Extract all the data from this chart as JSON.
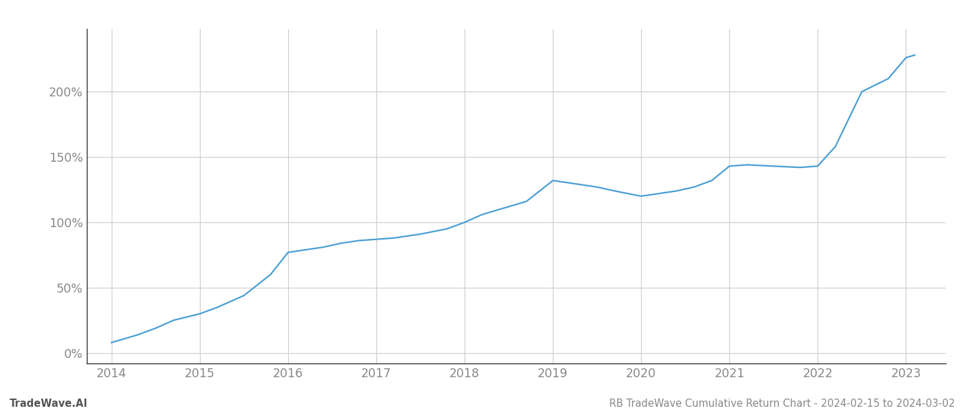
{
  "x": [
    2014.0,
    2014.15,
    2014.3,
    2014.5,
    2014.7,
    2015.0,
    2015.2,
    2015.5,
    2015.8,
    2016.0,
    2016.1,
    2016.2,
    2016.4,
    2016.6,
    2016.8,
    2017.0,
    2017.2,
    2017.5,
    2017.8,
    2018.0,
    2018.2,
    2018.5,
    2018.7,
    2019.0,
    2019.1,
    2019.3,
    2019.5,
    2019.7,
    2020.0,
    2020.2,
    2020.4,
    2020.6,
    2020.8,
    2021.0,
    2021.2,
    2021.5,
    2021.8,
    2022.0,
    2022.2,
    2022.5,
    2022.8,
    2023.0,
    2023.1
  ],
  "y": [
    8,
    11,
    14,
    19,
    25,
    30,
    35,
    44,
    60,
    77,
    78,
    79,
    81,
    84,
    86,
    87,
    88,
    91,
    95,
    100,
    106,
    112,
    116,
    132,
    131,
    129,
    127,
    124,
    120,
    122,
    124,
    127,
    132,
    143,
    144,
    143,
    142,
    143,
    158,
    200,
    210,
    226,
    228
  ],
  "line_color": "#4a9fd4",
  "line_width": 1.6,
  "background_color": "#ffffff",
  "grid_color": "#cccccc",
  "xlim": [
    2013.72,
    2023.45
  ],
  "ylim": [
    -8,
    248
  ],
  "xticks": [
    2014,
    2015,
    2016,
    2017,
    2018,
    2019,
    2020,
    2021,
    2022,
    2023
  ],
  "yticks": [
    0,
    50,
    100,
    150,
    200
  ],
  "ytick_labels": [
    "0%",
    "50%",
    "100%",
    "150%",
    "200%"
  ],
  "footer_left": "TradeWave.AI",
  "footer_right": "RB TradeWave Cumulative Return Chart - 2024-02-15 to 2024-03-02",
  "footer_fontsize": 10.5,
  "tick_fontsize": 12.5,
  "tick_color": "#888888"
}
